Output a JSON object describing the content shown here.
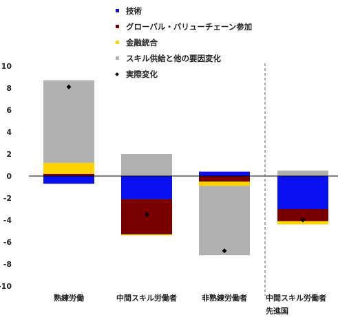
{
  "chart_data": {
    "type": "bar",
    "stacked": true,
    "categories": [
      "熟練労働",
      "中間スキル労働者",
      "非熟練労働者",
      "中間スキル労働者"
    ],
    "group_label": "先進国",
    "ylim": [
      -10,
      10
    ],
    "yticks": [
      -10,
      -8,
      -6,
      -4,
      -2,
      0,
      2,
      4,
      6,
      8,
      10
    ],
    "grid": false,
    "legend_position": "top",
    "series": [
      {
        "name": "技術",
        "color": "#0a10f0",
        "values": [
          -0.7,
          -2.1,
          0.4,
          -3.0
        ]
      },
      {
        "name": "グローバル・バリューチェーン参加",
        "color": "#7a0000",
        "values": [
          0.2,
          -3.2,
          -0.5,
          -1.1
        ]
      },
      {
        "name": "金融統合",
        "color": "#ffd200",
        "values": [
          1.0,
          -0.1,
          -0.4,
          -0.3
        ]
      },
      {
        "name": "スキル供給と他の要因変化",
        "color": "#b0b0b0",
        "values": [
          7.5,
          2.0,
          -6.3,
          0.5
        ]
      }
    ],
    "actual_change": {
      "name": "実際変化",
      "color": "#000000",
      "values": [
        8.1,
        -3.5,
        -6.8,
        -4.0
      ]
    }
  }
}
